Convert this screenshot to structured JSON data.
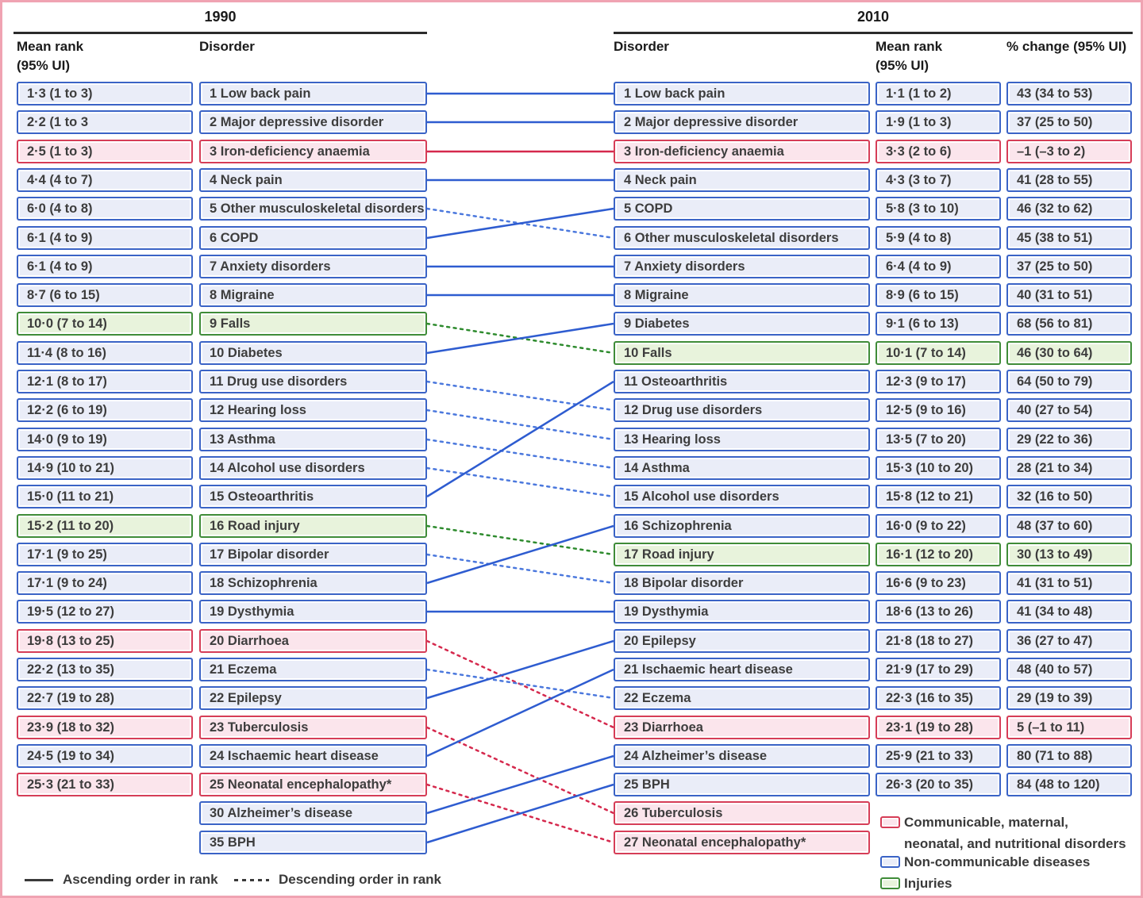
{
  "header": {
    "left_year": "1990",
    "right_year": "2010",
    "left": {
      "mean_rank": "Mean rank",
      "ui": "(95% UI)",
      "disorder": "Disorder"
    },
    "right": {
      "disorder": "Disorder",
      "mean_rank": "Mean rank",
      "ui": "(95% UI)",
      "pct_change": "% change (95% UI)"
    }
  },
  "line_legend": {
    "ascending": "Ascending order in rank",
    "descending": "Descending order in rank"
  },
  "category_legend": [
    {
      "category": "cmnn",
      "lines": [
        "Communicable, maternal,",
        "neonatal, and nutritional disorders"
      ]
    },
    {
      "category": "ncd",
      "lines": [
        "Non-communicable diseases"
      ]
    },
    {
      "category": "injury",
      "lines": [
        "Injuries"
      ]
    }
  ],
  "colors": {
    "ncd_border": "#3a63c6",
    "ncd_fill": "#eaedf8",
    "cmnn_border": "#d63d57",
    "cmnn_fill": "#fbe5ec",
    "injury_border": "#3f8c38",
    "injury_fill": "#e8f3dc",
    "line_solid_ncd": "#2e5cd0",
    "line_dashed_ncd": "#4b78dd",
    "line_cmnn": "#d5294d",
    "line_injury": "#2e8b2e",
    "frame": "#f0a3b2",
    "rule": "#2b2b2b",
    "text": "#3d3d3d"
  },
  "chart_data": {
    "type": "table",
    "subtype": "rank-change-slope-chart",
    "rows_1990": [
      {
        "slot": 1,
        "mean_rank": "1·3 (1 to 3)",
        "disorder": "1 Low back pain",
        "category": "ncd"
      },
      {
        "slot": 2,
        "mean_rank": "2·2 (1 to 3",
        "disorder": "2 Major depressive disorder",
        "category": "ncd"
      },
      {
        "slot": 3,
        "mean_rank": "2·5 (1 to 3)",
        "disorder": "3 Iron-deficiency anaemia",
        "category": "cmnn"
      },
      {
        "slot": 4,
        "mean_rank": "4·4 (4 to 7)",
        "disorder": "4 Neck pain",
        "category": "ncd"
      },
      {
        "slot": 5,
        "mean_rank": "6·0 (4 to 8)",
        "disorder": "5 Other musculoskeletal disorders",
        "category": "ncd"
      },
      {
        "slot": 6,
        "mean_rank": "6·1 (4 to 9)",
        "disorder": "6 COPD",
        "category": "ncd"
      },
      {
        "slot": 7,
        "mean_rank": "6·1 (4 to 9)",
        "disorder": "7 Anxiety disorders",
        "category": "ncd"
      },
      {
        "slot": 8,
        "mean_rank": "8·7 (6 to 15)",
        "disorder": "8 Migraine",
        "category": "ncd"
      },
      {
        "slot": 9,
        "mean_rank": "10·0 (7 to 14)",
        "disorder": "9 Falls",
        "category": "injury"
      },
      {
        "slot": 10,
        "mean_rank": "11·4 (8 to 16)",
        "disorder": "10 Diabetes",
        "category": "ncd"
      },
      {
        "slot": 11,
        "mean_rank": "12·1 (8 to 17)",
        "disorder": "11 Drug use disorders",
        "category": "ncd"
      },
      {
        "slot": 12,
        "mean_rank": "12·2 (6 to 19)",
        "disorder": "12 Hearing loss",
        "category": "ncd"
      },
      {
        "slot": 13,
        "mean_rank": "14·0 (9 to 19)",
        "disorder": "13 Asthma",
        "category": "ncd"
      },
      {
        "slot": 14,
        "mean_rank": "14·9 (10 to 21)",
        "disorder": "14 Alcohol use disorders",
        "category": "ncd"
      },
      {
        "slot": 15,
        "mean_rank": "15·0 (11 to 21)",
        "disorder": "15 Osteoarthritis",
        "category": "ncd"
      },
      {
        "slot": 16,
        "mean_rank": "15·2 (11 to 20)",
        "disorder": "16 Road injury",
        "category": "injury"
      },
      {
        "slot": 17,
        "mean_rank": "17·1 (9 to 25)",
        "disorder": "17 Bipolar disorder",
        "category": "ncd"
      },
      {
        "slot": 18,
        "mean_rank": "17·1 (9 to 24)",
        "disorder": "18 Schizophrenia",
        "category": "ncd"
      },
      {
        "slot": 19,
        "mean_rank": "19·5 (12 to 27)",
        "disorder": "19 Dysthymia",
        "category": "ncd"
      },
      {
        "slot": 20,
        "mean_rank": "19·8 (13 to 25)",
        "disorder": "20 Diarrhoea",
        "category": "cmnn"
      },
      {
        "slot": 21,
        "mean_rank": "22·2 (13 to 35)",
        "disorder": "21 Eczema",
        "category": "ncd"
      },
      {
        "slot": 22,
        "mean_rank": "22·7 (19 to 28)",
        "disorder": "22 Epilepsy",
        "category": "ncd"
      },
      {
        "slot": 23,
        "mean_rank": "23·9 (18 to 32)",
        "disorder": "23 Tuberculosis",
        "category": "cmnn"
      },
      {
        "slot": 24,
        "mean_rank": "24·5 (19 to 34)",
        "disorder": "24 Ischaemic heart disease",
        "category": "ncd"
      },
      {
        "slot": 25,
        "mean_rank": "25·3 (21 to 33)",
        "disorder": "25 Neonatal encephalopathy*",
        "category": "cmnn"
      },
      {
        "slot": 26,
        "mean_rank": null,
        "disorder": "30 Alzheimer’s disease",
        "category": "ncd"
      },
      {
        "slot": 27,
        "mean_rank": null,
        "disorder": "35 BPH",
        "category": "ncd"
      }
    ],
    "rows_2010": [
      {
        "slot": 1,
        "disorder": "1 Low back pain",
        "mean_rank": "1·1 (1 to 2)",
        "pct_change": "43 (34 to 53)",
        "category": "ncd"
      },
      {
        "slot": 2,
        "disorder": "2 Major depressive disorder",
        "mean_rank": "1·9 (1 to 3)",
        "pct_change": "37 (25 to 50)",
        "category": "ncd"
      },
      {
        "slot": 3,
        "disorder": "3 Iron-deficiency anaemia",
        "mean_rank": "3·3 (2 to 6)",
        "pct_change": "–1 (–3 to 2)",
        "category": "cmnn"
      },
      {
        "slot": 4,
        "disorder": "4 Neck pain",
        "mean_rank": "4·3 (3 to 7)",
        "pct_change": "41 (28 to 55)",
        "category": "ncd"
      },
      {
        "slot": 5,
        "disorder": "5 COPD",
        "mean_rank": "5·8 (3 to 10)",
        "pct_change": "46 (32 to 62)",
        "category": "ncd"
      },
      {
        "slot": 6,
        "disorder": "6 Other musculoskeletal disorders",
        "mean_rank": "5·9 (4 to 8)",
        "pct_change": "45 (38 to 51)",
        "category": "ncd"
      },
      {
        "slot": 7,
        "disorder": "7 Anxiety disorders",
        "mean_rank": "6·4 (4 to 9)",
        "pct_change": "37 (25 to 50)",
        "category": "ncd"
      },
      {
        "slot": 8,
        "disorder": "8 Migraine",
        "mean_rank": "8·9 (6 to 15)",
        "pct_change": "40 (31 to 51)",
        "category": "ncd"
      },
      {
        "slot": 9,
        "disorder": "9 Diabetes",
        "mean_rank": "9·1 (6 to 13)",
        "pct_change": "68 (56 to 81)",
        "category": "ncd"
      },
      {
        "slot": 10,
        "disorder": "10 Falls",
        "mean_rank": "10·1 (7 to 14)",
        "pct_change": "46 (30 to 64)",
        "category": "injury"
      },
      {
        "slot": 11,
        "disorder": "11 Osteoarthritis",
        "mean_rank": "12·3 (9 to 17)",
        "pct_change": "64 (50 to 79)",
        "category": "ncd"
      },
      {
        "slot": 12,
        "disorder": "12 Drug use disorders",
        "mean_rank": "12·5 (9 to 16)",
        "pct_change": "40 (27 to 54)",
        "category": "ncd"
      },
      {
        "slot": 13,
        "disorder": "13 Hearing loss",
        "mean_rank": "13·5 (7 to 20)",
        "pct_change": "29 (22 to 36)",
        "category": "ncd"
      },
      {
        "slot": 14,
        "disorder": "14 Asthma",
        "mean_rank": "15·3 (10 to 20)",
        "pct_change": "28 (21 to 34)",
        "category": "ncd"
      },
      {
        "slot": 15,
        "disorder": "15 Alcohol use disorders",
        "mean_rank": "15·8 (12 to 21)",
        "pct_change": "32 (16 to 50)",
        "category": "ncd"
      },
      {
        "slot": 16,
        "disorder": "16 Schizophrenia",
        "mean_rank": "16·0 (9 to 22)",
        "pct_change": "48 (37 to 60)",
        "category": "ncd"
      },
      {
        "slot": 17,
        "disorder": "17 Road injury",
        "mean_rank": "16·1 (12 to 20)",
        "pct_change": "30 (13 to 49)",
        "category": "injury"
      },
      {
        "slot": 18,
        "disorder": "18 Bipolar disorder",
        "mean_rank": "16·6 (9 to 23)",
        "pct_change": "41 (31 to 51)",
        "category": "ncd"
      },
      {
        "slot": 19,
        "disorder": "19 Dysthymia",
        "mean_rank": "18·6 (13 to 26)",
        "pct_change": "41 (34 to 48)",
        "category": "ncd"
      },
      {
        "slot": 20,
        "disorder": "20 Epilepsy",
        "mean_rank": "21·8 (18 to 27)",
        "pct_change": "36 (27 to 47)",
        "category": "ncd"
      },
      {
        "slot": 21,
        "disorder": "21 Ischaemic heart disease",
        "mean_rank": "21·9 (17 to 29)",
        "pct_change": "48 (40 to 57)",
        "category": "ncd"
      },
      {
        "slot": 22,
        "disorder": "22 Eczema",
        "mean_rank": "22·3 (16 to 35)",
        "pct_change": "29 (19 to 39)",
        "category": "ncd"
      },
      {
        "slot": 23,
        "disorder": "23 Diarrhoea",
        "mean_rank": "23·1 (19 to 28)",
        "pct_change": "5 (–1 to 11)",
        "category": "cmnn"
      },
      {
        "slot": 24,
        "disorder": "24 Alzheimer’s disease",
        "mean_rank": "25·9 (21 to 33)",
        "pct_change": "80 (71 to 88)",
        "category": "ncd"
      },
      {
        "slot": 25,
        "disorder": "25 BPH",
        "mean_rank": "26·3 (20 to 35)",
        "pct_change": "84 (48 to 120)",
        "category": "ncd"
      },
      {
        "slot": 26,
        "disorder": "26 Tuberculosis",
        "mean_rank": null,
        "pct_change": null,
        "category": "cmnn"
      },
      {
        "slot": 27,
        "disorder": "27 Neonatal encephalopathy*",
        "mean_rank": null,
        "pct_change": null,
        "category": "cmnn"
      }
    ],
    "links": [
      {
        "from": 1,
        "to": 1,
        "direction": "ascending",
        "category": "ncd"
      },
      {
        "from": 2,
        "to": 2,
        "direction": "ascending",
        "category": "ncd"
      },
      {
        "from": 3,
        "to": 3,
        "direction": "ascending",
        "category": "cmnn"
      },
      {
        "from": 4,
        "to": 4,
        "direction": "ascending",
        "category": "ncd"
      },
      {
        "from": 5,
        "to": 6,
        "direction": "descending",
        "category": "ncd"
      },
      {
        "from": 6,
        "to": 5,
        "direction": "ascending",
        "category": "ncd"
      },
      {
        "from": 7,
        "to": 7,
        "direction": "ascending",
        "category": "ncd"
      },
      {
        "from": 8,
        "to": 8,
        "direction": "ascending",
        "category": "ncd"
      },
      {
        "from": 9,
        "to": 10,
        "direction": "descending",
        "category": "injury"
      },
      {
        "from": 10,
        "to": 9,
        "direction": "ascending",
        "category": "ncd"
      },
      {
        "from": 11,
        "to": 12,
        "direction": "descending",
        "category": "ncd"
      },
      {
        "from": 12,
        "to": 13,
        "direction": "descending",
        "category": "ncd"
      },
      {
        "from": 13,
        "to": 14,
        "direction": "descending",
        "category": "ncd"
      },
      {
        "from": 14,
        "to": 15,
        "direction": "descending",
        "category": "ncd"
      },
      {
        "from": 15,
        "to": 11,
        "direction": "ascending",
        "category": "ncd"
      },
      {
        "from": 16,
        "to": 17,
        "direction": "descending",
        "category": "injury"
      },
      {
        "from": 17,
        "to": 18,
        "direction": "descending",
        "category": "ncd"
      },
      {
        "from": 18,
        "to": 16,
        "direction": "ascending",
        "category": "ncd"
      },
      {
        "from": 19,
        "to": 19,
        "direction": "ascending",
        "category": "ncd"
      },
      {
        "from": 20,
        "to": 23,
        "direction": "descending",
        "category": "cmnn"
      },
      {
        "from": 21,
        "to": 22,
        "direction": "descending",
        "category": "ncd"
      },
      {
        "from": 22,
        "to": 20,
        "direction": "ascending",
        "category": "ncd"
      },
      {
        "from": 23,
        "to": 26,
        "direction": "descending",
        "category": "cmnn"
      },
      {
        "from": 24,
        "to": 21,
        "direction": "ascending",
        "category": "ncd"
      },
      {
        "from": 25,
        "to": 27,
        "direction": "descending",
        "category": "cmnn"
      },
      {
        "from": 26,
        "to": 24,
        "direction": "ascending",
        "category": "ncd"
      },
      {
        "from": 27,
        "to": 25,
        "direction": "ascending",
        "category": "ncd"
      }
    ]
  }
}
